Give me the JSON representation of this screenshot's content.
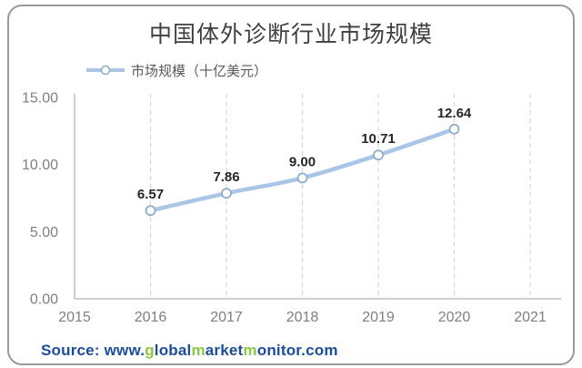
{
  "title": "中国体外诊断行业市场规模",
  "legend": {
    "label": "市场规模（十亿美元）"
  },
  "source": {
    "full_text": "Source: www.globalmarketmonitor.com",
    "segments": [
      {
        "text": "Source: www.",
        "color": "#1b4d9b"
      },
      {
        "text": "g",
        "color": "#8dc63f"
      },
      {
        "text": "lobal",
        "color": "#1b4d9b"
      },
      {
        "text": "m",
        "color": "#8dc63f"
      },
      {
        "text": "arket",
        "color": "#1b4d9b"
      },
      {
        "text": "m",
        "color": "#8dc63f"
      },
      {
        "text": "onitor.com",
        "color": "#1b4d9b"
      }
    ]
  },
  "chart_data": {
    "type": "line",
    "title": "中国体外诊断行业市场规模",
    "series": [
      {
        "name": "市场规模（十亿美元）",
        "x": [
          2016,
          2017,
          2018,
          2019,
          2020
        ],
        "values": [
          6.57,
          7.86,
          9.0,
          10.71,
          12.64
        ],
        "data_labels": [
          "6.57",
          "7.86",
          "9.00",
          "10.71",
          "12.64"
        ]
      }
    ],
    "xlabel": "",
    "ylabel": "",
    "xlim": [
      2015,
      2021
    ],
    "ylim": [
      0,
      15
    ],
    "xticks": [
      2015,
      2016,
      2017,
      2018,
      2019,
      2020,
      2021
    ],
    "yticks": [
      0,
      5,
      10,
      15
    ],
    "ytick_labels": [
      "0.00",
      "5.00",
      "10.00",
      "15.00"
    ],
    "grid": "vertical-dashed-at-xticks",
    "legend_position": "top-left",
    "marker": "circle-open",
    "smooth": true,
    "colors": {
      "line": "#a9c6e7",
      "marker_fill": "#ffffff",
      "marker_stroke": "#8fadc8",
      "gridline": "#d8d8d8",
      "axis": "#bfbfbf",
      "tick_text": "#7f7f7f",
      "data_label": "#262626",
      "title_text": "#3f3f3f",
      "legend_text": "#595959"
    }
  }
}
